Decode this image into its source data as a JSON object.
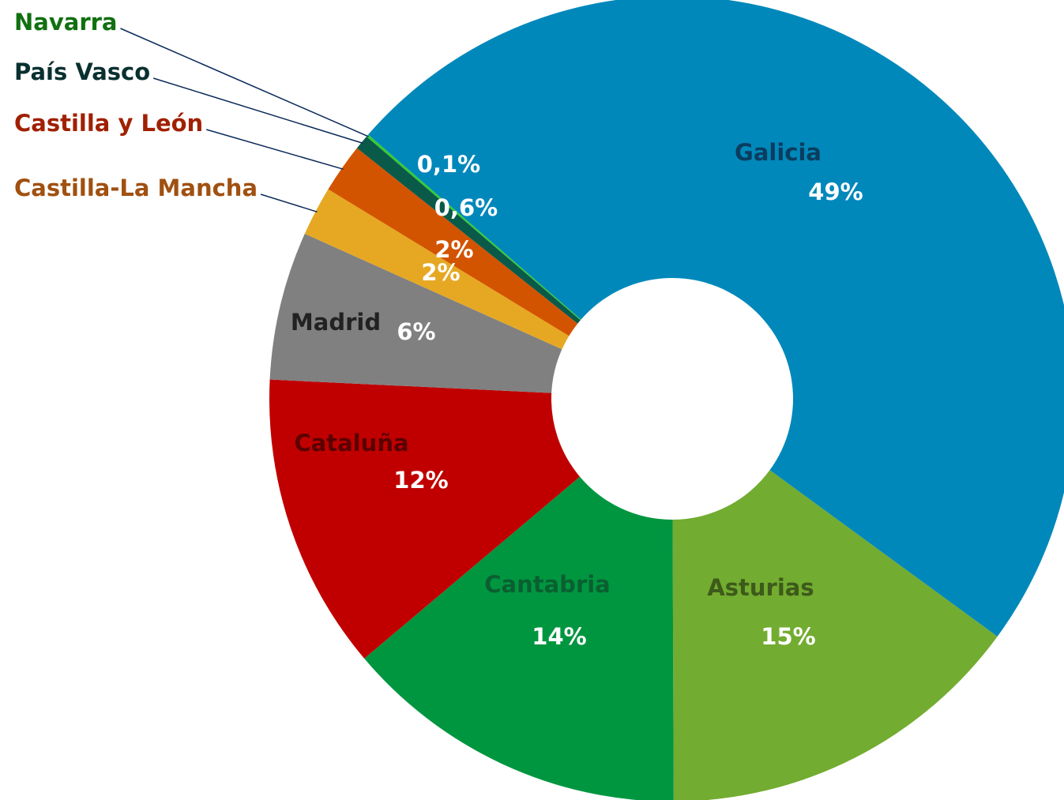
{
  "chart_data": {
    "type": "donut",
    "categories": [
      "Galicia",
      "Asturias",
      "Cantabria",
      "Cataluña",
      "Madrid",
      "Castilla-La Mancha",
      "Castilla y León",
      "País Vasco",
      "Navarra"
    ],
    "values": [
      49,
      15,
      14,
      12,
      6,
      2,
      2,
      0.6,
      0.1
    ],
    "value_labels": [
      "49%",
      "15%",
      "14%",
      "12%",
      "6%",
      "2%",
      "2%",
      "0,6%",
      "0,1%"
    ],
    "colors": [
      "#0088bb",
      "#72ac30",
      "#009640",
      "#c00000",
      "#808080",
      "#e6a823",
      "#d35400",
      "#0a5a4a",
      "#33cc33"
    ],
    "label_colors": [
      "#0b3d5e",
      "#3d5a1a",
      "#0a5f30",
      "#5a0000",
      "#222222",
      "#a05010",
      "#a02000",
      "#0a3030",
      "#107010"
    ]
  }
}
